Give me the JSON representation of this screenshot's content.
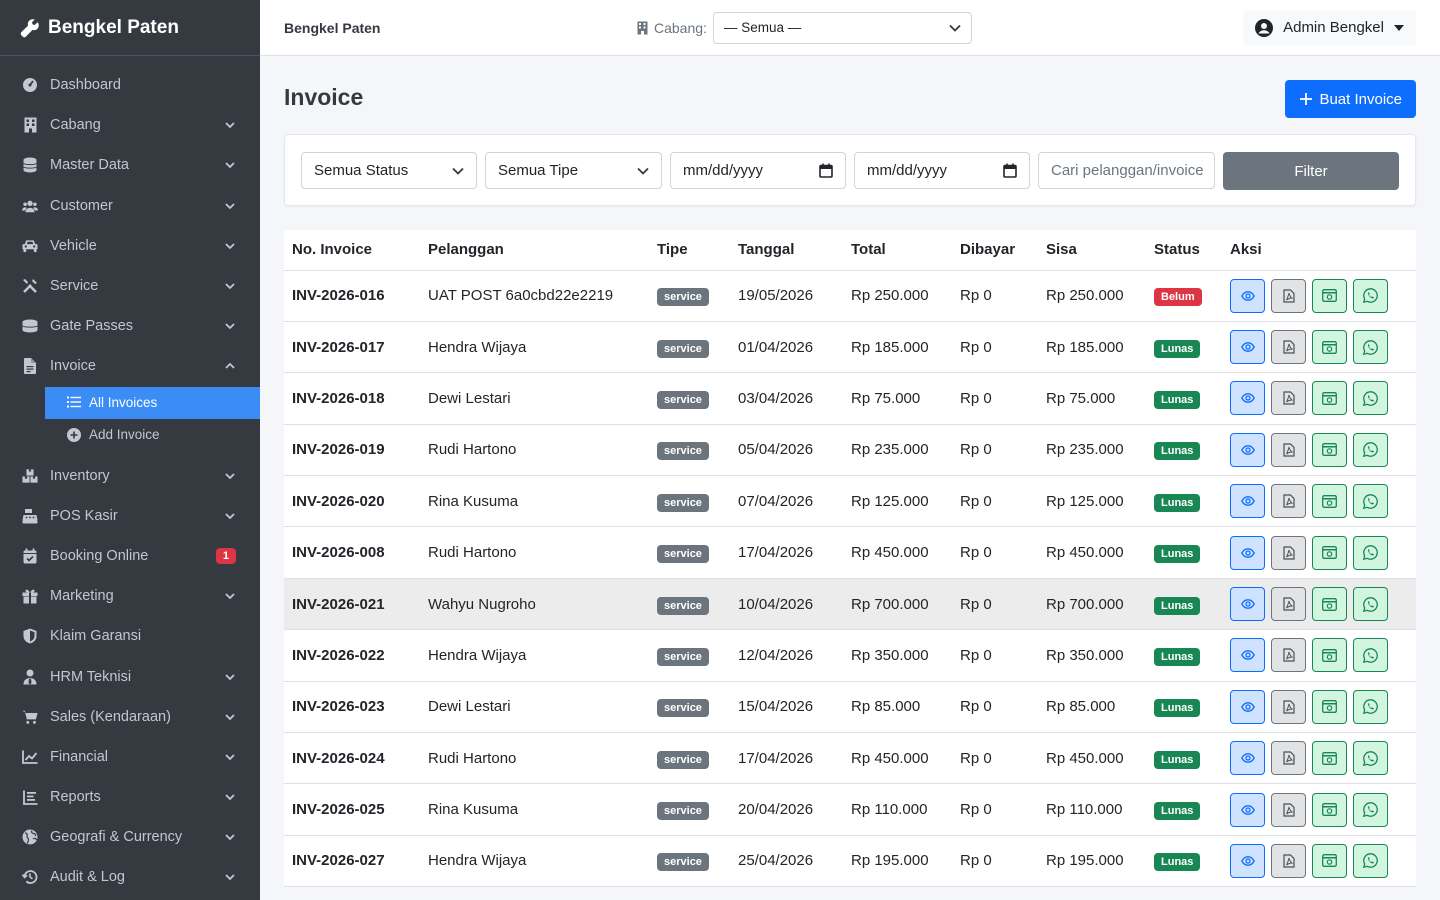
{
  "brand": {
    "title": "Bengkel Paten"
  },
  "sidebar": {
    "items": [
      {
        "label": "Dashboard",
        "icon": "gauge-icon",
        "chevron": false
      },
      {
        "label": "Cabang",
        "icon": "building-icon",
        "chevron": true
      },
      {
        "label": "Master Data",
        "icon": "database-icon",
        "chevron": true
      },
      {
        "label": "Customer",
        "icon": "users-icon",
        "chevron": true
      },
      {
        "label": "Vehicle",
        "icon": "car-icon",
        "chevron": true
      },
      {
        "label": "Service",
        "icon": "tools-icon",
        "chevron": true
      },
      {
        "label": "Gate Passes",
        "icon": "ticket-icon",
        "chevron": true
      },
      {
        "label": "Invoice",
        "icon": "file-invoice-icon",
        "chevron": "up"
      }
    ],
    "invoice_sub": [
      {
        "label": "All Invoices",
        "icon": "list-icon",
        "active": true
      },
      {
        "label": "Add Invoice",
        "icon": "plus-circle-icon",
        "active": false
      }
    ],
    "items2": [
      {
        "label": "Inventory",
        "icon": "boxes-icon",
        "chevron": true
      },
      {
        "label": "POS Kasir",
        "icon": "cash-register-icon",
        "chevron": true
      },
      {
        "label": "Booking Online",
        "icon": "calendar-check-icon",
        "badge": "1"
      },
      {
        "label": "Marketing",
        "icon": "gift-icon",
        "chevron": true
      },
      {
        "label": "Klaim Garansi",
        "icon": "shield-icon",
        "chevron": false
      },
      {
        "label": "HRM Teknisi",
        "icon": "user-tie-icon",
        "chevron": true
      },
      {
        "label": "Sales (Kendaraan)",
        "icon": "cart-icon",
        "chevron": true
      },
      {
        "label": "Financial",
        "icon": "chart-line-icon",
        "chevron": true
      },
      {
        "label": "Reports",
        "icon": "report-icon",
        "chevron": true
      },
      {
        "label": "Geografi & Currency",
        "icon": "globe-icon",
        "chevron": true
      },
      {
        "label": "Audit & Log",
        "icon": "history-icon",
        "chevron": true
      }
    ]
  },
  "topbar": {
    "app_name": "Bengkel Paten",
    "branch_label": "Cabang:",
    "branch_value": "— Semua —",
    "user": "Admin Bengkel"
  },
  "page": {
    "title": "Invoice",
    "create_button": "Buat Invoice"
  },
  "filters": {
    "status": "Semua Status",
    "tipe": "Semua Tipe",
    "date_from": "mm/dd/yyyy",
    "date_to": "mm/dd/yyyy",
    "search_placeholder": "Cari pelanggan/invoice",
    "filter_button": "Filter"
  },
  "table": {
    "columns": [
      "No. Invoice",
      "Pelanggan",
      "Tipe",
      "Tanggal",
      "Total",
      "Dibayar",
      "Sisa",
      "Status",
      "Aksi"
    ],
    "rows": [
      {
        "no": "INV-2026-016",
        "pelanggan": "UAT POST 6a0cbd22e2219",
        "tipe": "service",
        "tanggal": "19/05/2026",
        "total": "Rp 250.000",
        "dibayar": "Rp 0",
        "sisa": "Rp 250.000",
        "status": "Belum"
      },
      {
        "no": "INV-2026-017",
        "pelanggan": "Hendra Wijaya",
        "tipe": "service",
        "tanggal": "01/04/2026",
        "total": "Rp 185.000",
        "dibayar": "Rp 0",
        "sisa": "Rp 185.000",
        "status": "Lunas"
      },
      {
        "no": "INV-2026-018",
        "pelanggan": "Dewi Lestari",
        "tipe": "service",
        "tanggal": "03/04/2026",
        "total": "Rp 75.000",
        "dibayar": "Rp 0",
        "sisa": "Rp 75.000",
        "status": "Lunas"
      },
      {
        "no": "INV-2026-019",
        "pelanggan": "Rudi Hartono",
        "tipe": "service",
        "tanggal": "05/04/2026",
        "total": "Rp 235.000",
        "dibayar": "Rp 0",
        "sisa": "Rp 235.000",
        "status": "Lunas"
      },
      {
        "no": "INV-2026-020",
        "pelanggan": "Rina Kusuma",
        "tipe": "service",
        "tanggal": "07/04/2026",
        "total": "Rp 125.000",
        "dibayar": "Rp 0",
        "sisa": "Rp 125.000",
        "status": "Lunas"
      },
      {
        "no": "INV-2026-008",
        "pelanggan": "Rudi Hartono",
        "tipe": "service",
        "tanggal": "17/04/2026",
        "total": "Rp 450.000",
        "dibayar": "Rp 0",
        "sisa": "Rp 450.000",
        "status": "Lunas"
      },
      {
        "no": "INV-2026-021",
        "pelanggan": "Wahyu Nugroho",
        "tipe": "service",
        "tanggal": "10/04/2026",
        "total": "Rp 700.000",
        "dibayar": "Rp 0",
        "sisa": "Rp 700.000",
        "status": "Lunas",
        "highlight": true
      },
      {
        "no": "INV-2026-022",
        "pelanggan": "Hendra Wijaya",
        "tipe": "service",
        "tanggal": "12/04/2026",
        "total": "Rp 350.000",
        "dibayar": "Rp 0",
        "sisa": "Rp 350.000",
        "status": "Lunas"
      },
      {
        "no": "INV-2026-023",
        "pelanggan": "Dewi Lestari",
        "tipe": "service",
        "tanggal": "15/04/2026",
        "total": "Rp 85.000",
        "dibayar": "Rp 0",
        "sisa": "Rp 85.000",
        "status": "Lunas"
      },
      {
        "no": "INV-2026-024",
        "pelanggan": "Rudi Hartono",
        "tipe": "service",
        "tanggal": "17/04/2026",
        "total": "Rp 450.000",
        "dibayar": "Rp 0",
        "sisa": "Rp 450.000",
        "status": "Lunas"
      },
      {
        "no": "INV-2026-025",
        "pelanggan": "Rina Kusuma",
        "tipe": "service",
        "tanggal": "20/04/2026",
        "total": "Rp 110.000",
        "dibayar": "Rp 0",
        "sisa": "Rp 110.000",
        "status": "Lunas"
      },
      {
        "no": "INV-2026-027",
        "pelanggan": "Hendra Wijaya",
        "tipe": "service",
        "tanggal": "25/04/2026",
        "total": "Rp 195.000",
        "dibayar": "Rp 0",
        "sisa": "Rp 195.000",
        "status": "Lunas"
      }
    ]
  },
  "colors": {
    "sidebar_bg": "#343a40",
    "primary": "#0d6efd",
    "active_nav": "#3b8cf5",
    "danger": "#dc3545",
    "success": "#198754",
    "secondary": "#6c757d"
  }
}
